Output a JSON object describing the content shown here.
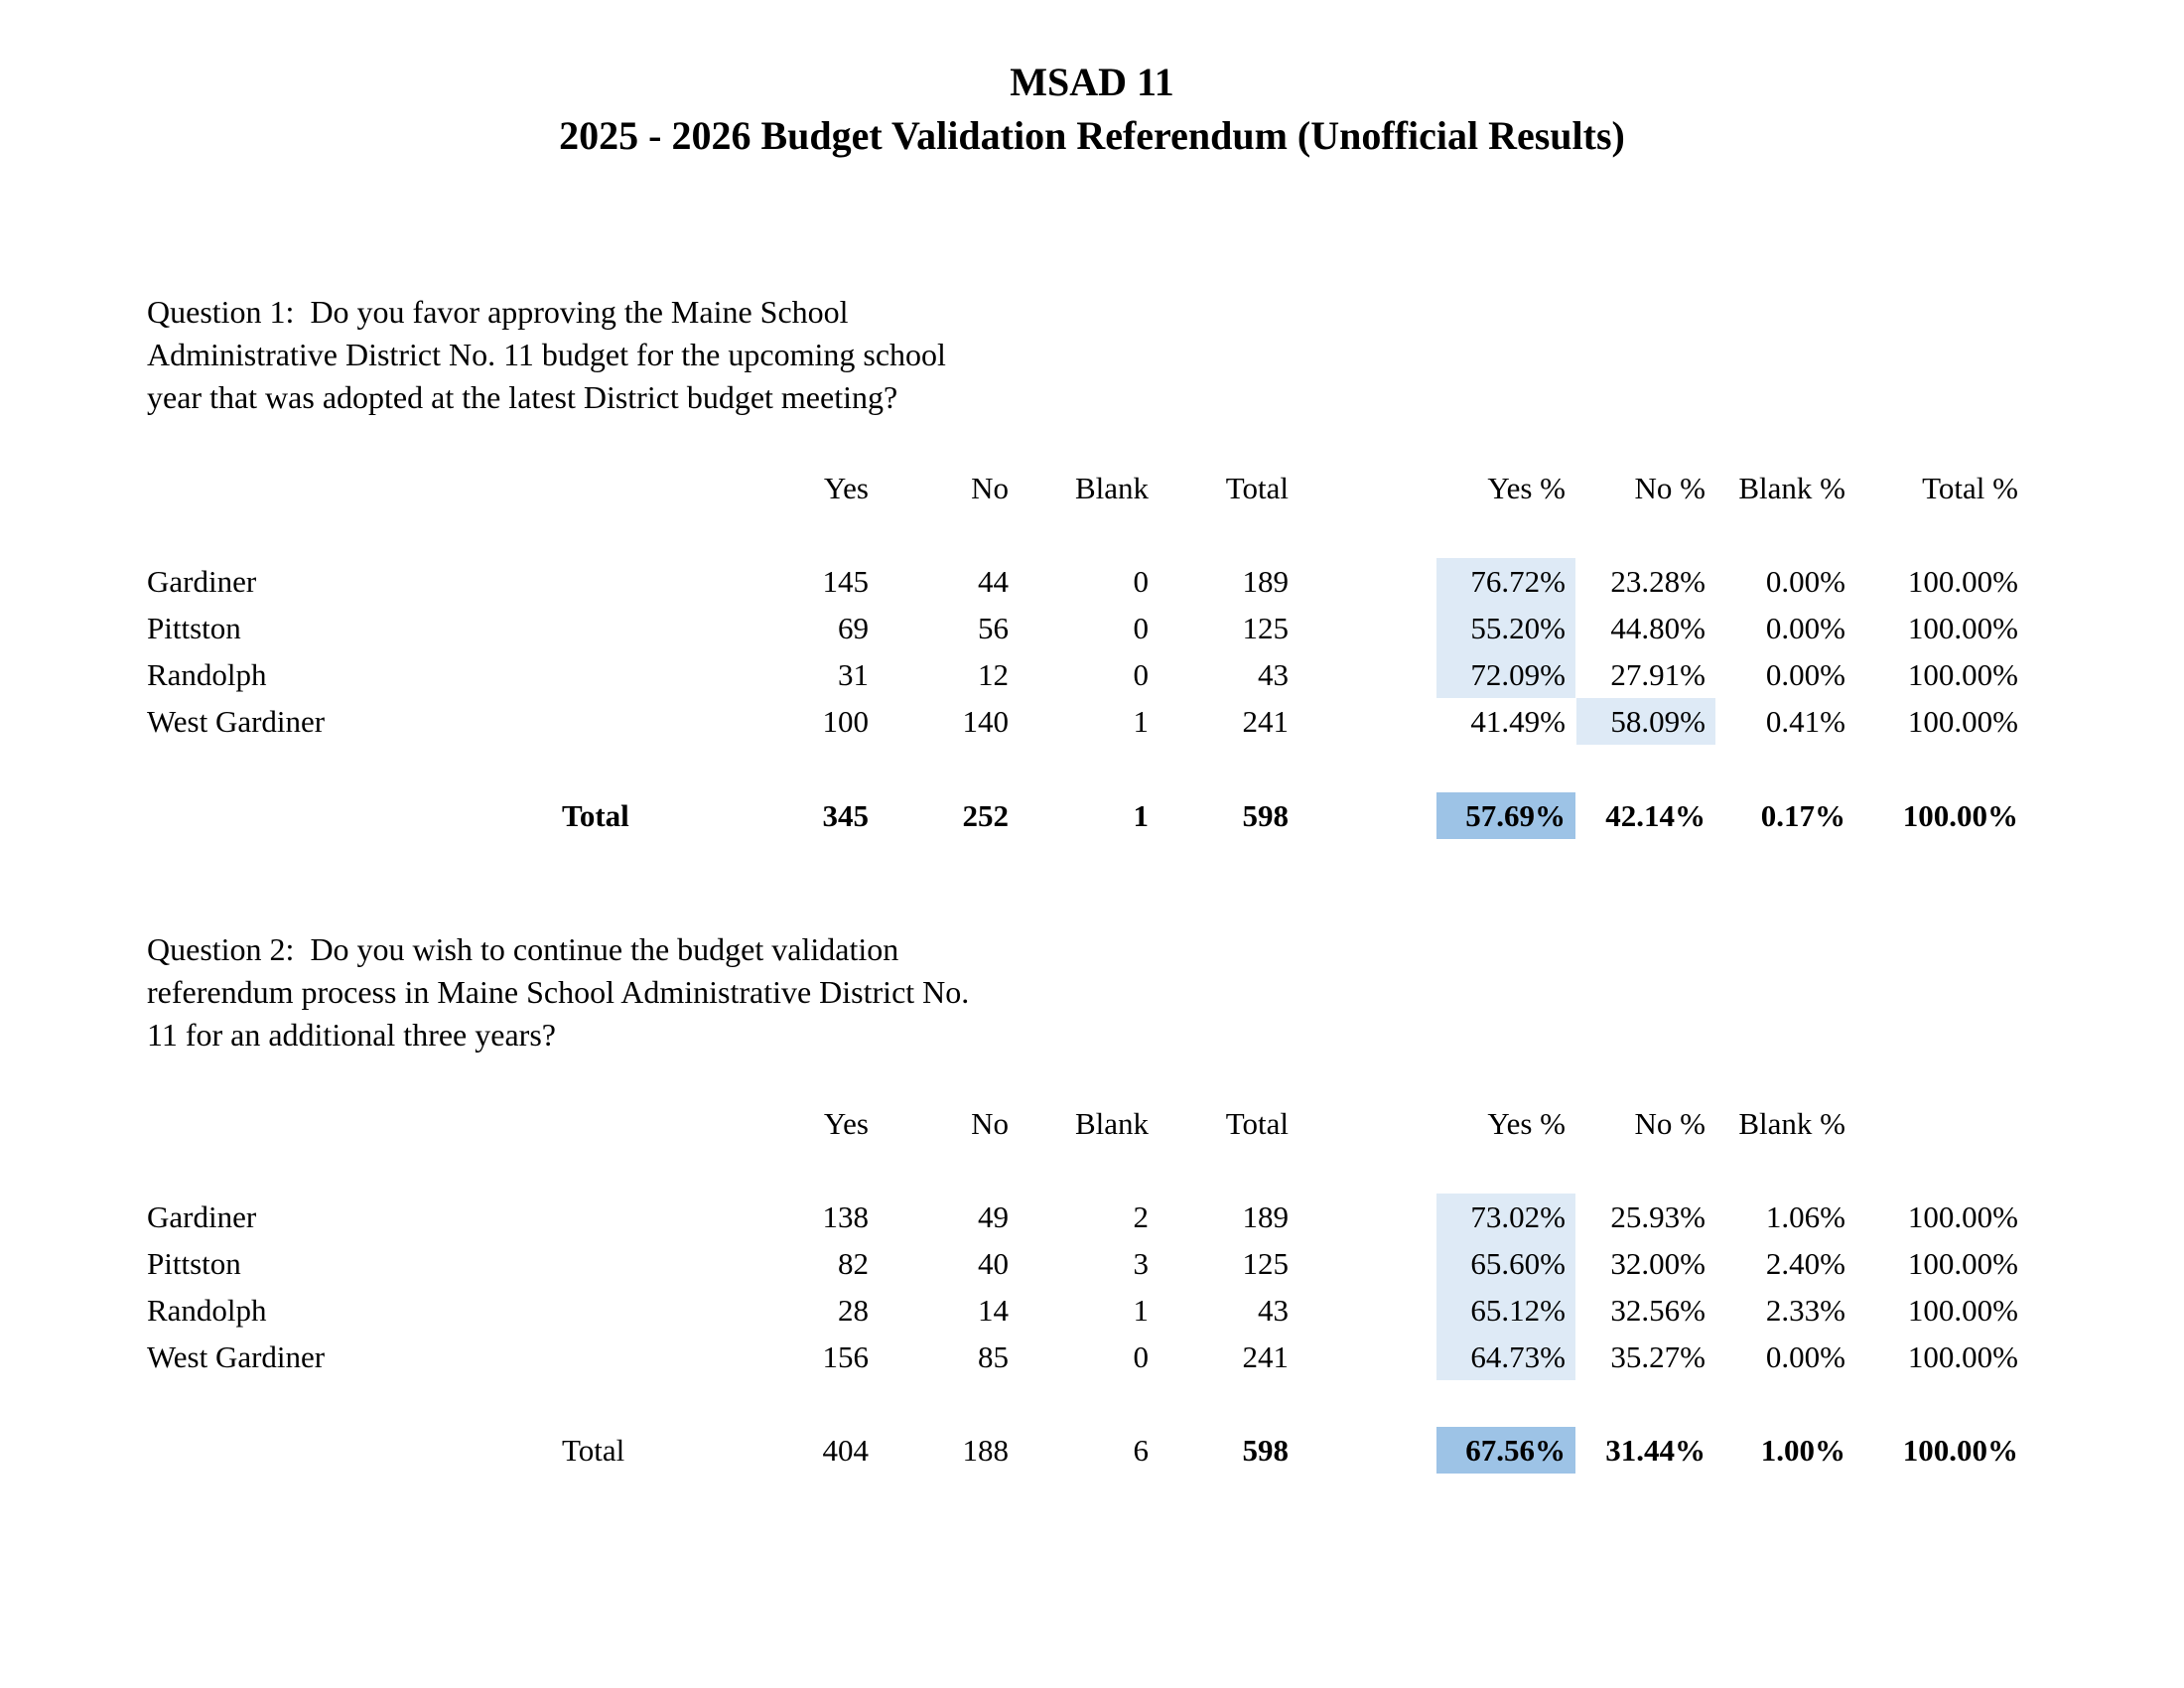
{
  "document": {
    "title_line1": "MSAD 11",
    "title_line2": "2025 - 2026 Budget Validation Referendum (Unofficial Results)"
  },
  "colors": {
    "highlight_light_blue": "#DEEAF6",
    "highlight_medium_blue": "#9DC3E6",
    "text": "#000000",
    "background": "#FFFFFF"
  },
  "questions": [
    {
      "text": "Question 1:  Do you favor approving the Maine School\nAdministrative District No. 11 budget for the upcoming school\nyear that was adopted at the latest District budget meeting?",
      "headers": {
        "yes": "Yes",
        "no": "No",
        "blank": "Blank",
        "total": "Total",
        "yes_pct": "Yes %",
        "no_pct": "No %",
        "blank_pct": "Blank %",
        "total_pct": "Total %"
      },
      "rows": [
        {
          "town": "Gardiner",
          "yes": "145",
          "no": "44",
          "blank": "0",
          "total": "189",
          "yes_pct": "76.72%",
          "no_pct": "23.28%",
          "blank_pct": "0.00%",
          "total_pct": "100.00%"
        },
        {
          "town": "Pittston",
          "yes": "69",
          "no": "56",
          "blank": "0",
          "total": "125",
          "yes_pct": "55.20%",
          "no_pct": "44.80%",
          "blank_pct": "0.00%",
          "total_pct": "100.00%"
        },
        {
          "town": "Randolph",
          "yes": "31",
          "no": "12",
          "blank": "0",
          "total": "43",
          "yes_pct": "72.09%",
          "no_pct": "27.91%",
          "blank_pct": "0.00%",
          "total_pct": "100.00%"
        },
        {
          "town": "West Gardiner",
          "yes": "100",
          "no": "140",
          "blank": "1",
          "total": "241",
          "yes_pct": "41.49%",
          "no_pct": "58.09%",
          "blank_pct": "0.41%",
          "total_pct": "100.00%"
        }
      ],
      "total_row": {
        "label": "Total",
        "yes": "345",
        "no": "252",
        "blank": "1",
        "total": "598",
        "yes_pct": "57.69%",
        "no_pct": "42.14%",
        "blank_pct": "0.17%",
        "total_pct": "100.00%"
      }
    },
    {
      "text": "Question 2:  Do you wish to continue the budget validation\nreferendum process in Maine School Administrative District No.\n11 for an additional three years?",
      "headers": {
        "yes": "Yes",
        "no": "No",
        "blank": "Blank",
        "total": "Total",
        "yes_pct": "Yes %",
        "no_pct": "No %",
        "blank_pct": "Blank %"
      },
      "rows": [
        {
          "town": "Gardiner",
          "yes": "138",
          "no": "49",
          "blank": "2",
          "total": "189",
          "yes_pct": "73.02%",
          "no_pct": "25.93%",
          "blank_pct": "1.06%",
          "total_pct": "100.00%"
        },
        {
          "town": "Pittston",
          "yes": "82",
          "no": "40",
          "blank": "3",
          "total": "125",
          "yes_pct": "65.60%",
          "no_pct": "32.00%",
          "blank_pct": "2.40%",
          "total_pct": "100.00%"
        },
        {
          "town": "Randolph",
          "yes": "28",
          "no": "14",
          "blank": "1",
          "total": "43",
          "yes_pct": "65.12%",
          "no_pct": "32.56%",
          "blank_pct": "2.33%",
          "total_pct": "100.00%"
        },
        {
          "town": "West Gardiner",
          "yes": "156",
          "no": "85",
          "blank": "0",
          "total": "241",
          "yes_pct": "64.73%",
          "no_pct": "35.27%",
          "blank_pct": "0.00%",
          "total_pct": "100.00%"
        }
      ],
      "total_row": {
        "label": "Total",
        "yes": "404",
        "no": "188",
        "blank": "6",
        "total": "598",
        "yes_pct": "67.56%",
        "no_pct": "31.44%",
        "blank_pct": "1.00%",
        "total_pct": "100.00%"
      }
    }
  ]
}
